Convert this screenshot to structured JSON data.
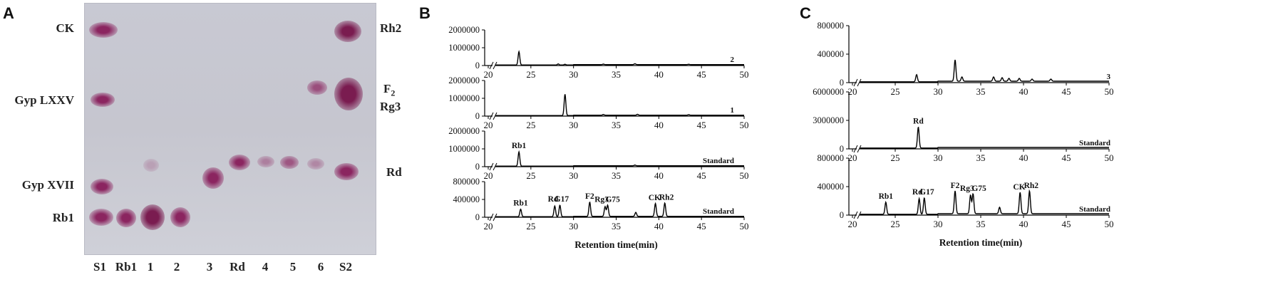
{
  "panels": {
    "A": {
      "letter": "A",
      "left_labels": [
        "CK",
        "Gyp LXXV",
        "Gyp XVII",
        "Rb1"
      ],
      "right_labels": [
        "Rh2",
        "F2",
        "Rg3",
        "Rd"
      ],
      "lanes": [
        "S1",
        "Rb1",
        "1",
        "2",
        "3",
        "Rd",
        "4",
        "5",
        "6",
        "S2"
      ],
      "spot_color": "#8b2560"
    },
    "B": {
      "letter": "B"
    },
    "C": {
      "letter": "C"
    }
  },
  "chart_data": [
    {
      "panel": "B",
      "type": "line",
      "xlabel": "Retention time(min)",
      "xticks": [
        20,
        25,
        30,
        35,
        40,
        45,
        50
      ],
      "subplots": [
        {
          "label": "2",
          "ylim": [
            0,
            2000000
          ],
          "yticks": [
            0,
            1000000,
            2000000
          ],
          "peaks": [
            {
              "x": 23.6,
              "y": 750000
            },
            {
              "x": 28.2,
              "y": 60000
            },
            {
              "x": 29.0,
              "y": 40000
            },
            {
              "x": 33.5,
              "y": 30000
            },
            {
              "x": 37.2,
              "y": 50000
            },
            {
              "x": 43.5,
              "y": 20000
            }
          ],
          "annotations": []
        },
        {
          "label": "1",
          "ylim": [
            0,
            2000000
          ],
          "yticks": [
            0,
            1000000,
            2000000
          ],
          "peaks": [
            {
              "x": 29.0,
              "y": 1200000
            },
            {
              "x": 33.5,
              "y": 40000
            },
            {
              "x": 37.5,
              "y": 50000
            },
            {
              "x": 43.5,
              "y": 30000
            }
          ],
          "annotations": []
        },
        {
          "label": "Standard",
          "ylim": [
            0,
            2000000
          ],
          "yticks": [
            0,
            1000000,
            2000000
          ],
          "peaks": [
            {
              "x": 23.6,
              "y": 800000
            },
            {
              "x": 37.2,
              "y": 40000
            }
          ],
          "annotations": [
            {
              "text": "Rb1",
              "x": 23.6
            }
          ]
        },
        {
          "label": "Standard",
          "ylim": [
            0,
            800000
          ],
          "yticks": [
            0,
            400000,
            800000
          ],
          "peaks": [
            {
              "x": 23.8,
              "y": 170000
            },
            {
              "x": 27.8,
              "y": 240000
            },
            {
              "x": 28.4,
              "y": 260000
            },
            {
              "x": 31.9,
              "y": 320000
            },
            {
              "x": 33.7,
              "y": 220000
            },
            {
              "x": 34.0,
              "y": 250000
            },
            {
              "x": 37.3,
              "y": 90000
            },
            {
              "x": 39.6,
              "y": 290000
            },
            {
              "x": 40.7,
              "y": 300000
            }
          ],
          "annotations": [
            {
              "text": "Rb1",
              "x": 23.8
            },
            {
              "text": "Rd",
              "x": 27.6
            },
            {
              "text": "G17",
              "x": 28.6
            },
            {
              "text": "F2",
              "x": 31.9
            },
            {
              "text": "Rg3",
              "x": 33.3
            },
            {
              "text": "G75",
              "x": 34.6
            },
            {
              "text": "CK",
              "x": 39.5
            },
            {
              "text": "Rh2",
              "x": 40.9
            }
          ]
        }
      ]
    },
    {
      "panel": "C",
      "type": "line",
      "xlabel": "Retention time(min)",
      "xticks": [
        20,
        25,
        30,
        35,
        40,
        45,
        50
      ],
      "subplots": [
        {
          "label": "3",
          "ylim": [
            0,
            800000
          ],
          "yticks": [
            0,
            400000,
            800000
          ],
          "peaks": [
            {
              "x": 27.5,
              "y": 100000
            },
            {
              "x": 32.0,
              "y": 300000
            },
            {
              "x": 32.8,
              "y": 60000
            },
            {
              "x": 36.5,
              "y": 60000
            },
            {
              "x": 37.5,
              "y": 50000
            },
            {
              "x": 38.3,
              "y": 40000
            },
            {
              "x": 39.5,
              "y": 40000
            },
            {
              "x": 41.0,
              "y": 30000
            },
            {
              "x": 43.2,
              "y": 30000
            }
          ],
          "annotations": []
        },
        {
          "label": "Standard",
          "ylim": [
            0,
            6000000
          ],
          "yticks": [
            0,
            3000000,
            6000000
          ],
          "peaks": [
            {
              "x": 27.7,
              "y": 2200000
            }
          ],
          "annotations": [
            {
              "text": "Rd",
              "x": 27.7
            }
          ]
        },
        {
          "label": "Standard",
          "ylim": [
            0,
            800000
          ],
          "yticks": [
            0,
            400000,
            800000
          ],
          "peaks": [
            {
              "x": 23.9,
              "y": 170000
            },
            {
              "x": 27.8,
              "y": 220000
            },
            {
              "x": 28.4,
              "y": 230000
            },
            {
              "x": 32.0,
              "y": 320000
            },
            {
              "x": 33.8,
              "y": 260000
            },
            {
              "x": 34.1,
              "y": 280000
            },
            {
              "x": 37.2,
              "y": 90000
            },
            {
              "x": 39.6,
              "y": 300000
            },
            {
              "x": 40.7,
              "y": 320000
            }
          ],
          "annotations": [
            {
              "text": "Rb1",
              "x": 23.9
            },
            {
              "text": "Rd",
              "x": 27.6
            },
            {
              "text": "G17",
              "x": 28.7
            },
            {
              "text": "F2",
              "x": 32.0
            },
            {
              "text": "Rg3",
              "x": 33.4
            },
            {
              "text": "G75",
              "x": 34.8
            },
            {
              "text": "CK",
              "x": 39.5
            },
            {
              "text": "Rh2",
              "x": 40.9
            }
          ]
        }
      ]
    }
  ]
}
